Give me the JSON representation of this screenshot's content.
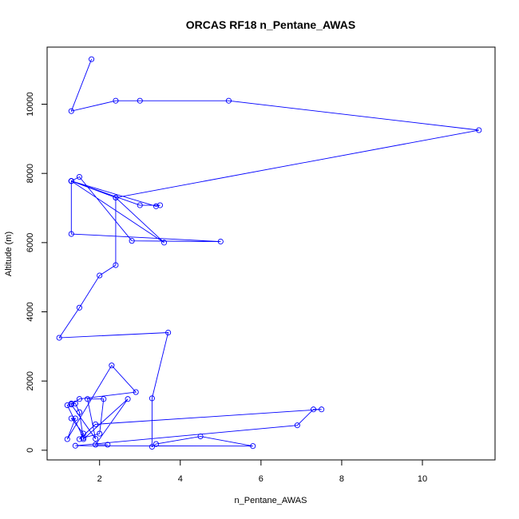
{
  "chart_data": {
    "type": "line",
    "title": "ORCAS RF18 n_Pentane_AWAS",
    "xlabel": "n_Pentane_AWAS",
    "ylabel": "Altitude (m)",
    "xlim": [
      0.7,
      11.8
    ],
    "ylim": [
      -280,
      11650
    ],
    "x_ticks": [
      2,
      4,
      6,
      8,
      10
    ],
    "y_ticks": [
      0,
      2000,
      4000,
      6000,
      8000,
      10000
    ],
    "x_tick_labels": [
      "2",
      "4",
      "6",
      "8",
      "10"
    ],
    "y_tick_labels": [
      "0",
      "2000",
      "4000",
      "6000",
      "8000",
      "10000"
    ],
    "grid": false,
    "series_color": "#0000ff",
    "marker": "open-circle",
    "series": [
      {
        "x": [
          1.8,
          1.3,
          2.4,
          3.0,
          5.2,
          11.4,
          2.4,
          1.3,
          1.5,
          2.8,
          5.0,
          1.3,
          1.3,
          3.4,
          3.5,
          3.0,
          1.3,
          3.6,
          2.4,
          2.4,
          2.0,
          1.5,
          1.0,
          3.7,
          3.3,
          3.3,
          3.4,
          4.5,
          5.8,
          1.4,
          6.9,
          7.3,
          7.5,
          1.9,
          1.5,
          1.6,
          1.3,
          1.4,
          1.2,
          2.3,
          2.9,
          1.5,
          1.3,
          1.9,
          1.7,
          2.1,
          2.0,
          1.6,
          1.2,
          1.3,
          1.4,
          1.5,
          1.6,
          2.7,
          1.9,
          2.2
        ],
        "y": [
          11300,
          9800,
          10100,
          10100,
          10100,
          9250,
          7300,
          7780,
          7900,
          6050,
          6030,
          6250,
          7780,
          7050,
          7080,
          7080,
          7780,
          6000,
          7300,
          5350,
          5050,
          4120,
          3250,
          3400,
          1500,
          100,
          180,
          400,
          120,
          130,
          720,
          1180,
          1180,
          750,
          320,
          480,
          920,
          920,
          320,
          2450,
          1680,
          1480,
          1320,
          330,
          1480,
          1480,
          480,
          360,
          1300,
          1350,
          1350,
          1100,
          320,
          1480,
          160,
          160
        ]
      }
    ]
  }
}
